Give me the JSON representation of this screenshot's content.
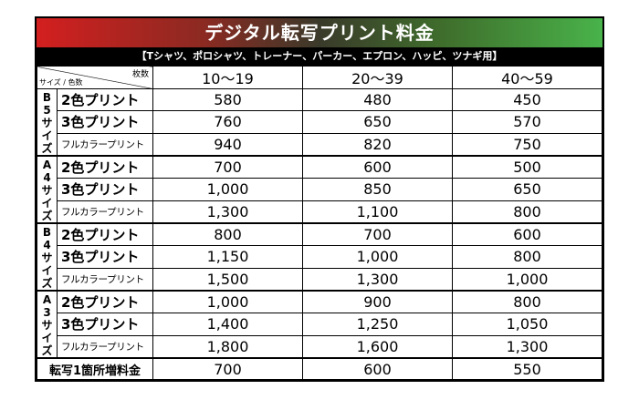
{
  "title": "デジタル転写プリント料金",
  "subtitle": "【Tシャツ、ポロシャツ、トレーナー、パーカー、エプロン、ハッピ、ツナギ用】",
  "header": {
    "corner_top": "枚数",
    "corner_bottom": "サイズ / 色数",
    "columns": [
      "10〜19",
      "20〜39",
      "40〜59"
    ]
  },
  "sizes": [
    {
      "label": [
        "B",
        "5",
        "サ",
        "イ",
        "ズ"
      ],
      "rows": [
        {
          "color": "2色プリント",
          "prices": [
            "580",
            "480",
            "450"
          ]
        },
        {
          "color": "3色プリント",
          "prices": [
            "760",
            "650",
            "570"
          ]
        },
        {
          "color": "フルカラープリント",
          "prices": [
            "940",
            "820",
            "750"
          ]
        }
      ]
    },
    {
      "label": [
        "A",
        "4",
        "サ",
        "イ",
        "ズ"
      ],
      "rows": [
        {
          "color": "2色プリント",
          "prices": [
            "700",
            "600",
            "500"
          ]
        },
        {
          "color": "3色プリント",
          "prices": [
            "1,000",
            "850",
            "650"
          ]
        },
        {
          "color": "フルカラープリント",
          "prices": [
            "1,300",
            "1,100",
            "800"
          ]
        }
      ]
    },
    {
      "label": [
        "B",
        "4",
        "サ",
        "イ",
        "ズ"
      ],
      "rows": [
        {
          "color": "2色プリント",
          "prices": [
            "800",
            "700",
            "600"
          ]
        },
        {
          "color": "3色プリント",
          "prices": [
            "1,150",
            "1,000",
            "800"
          ]
        },
        {
          "color": "フルカラープリント",
          "prices": [
            "1,500",
            "1,300",
            "1,000"
          ]
        }
      ]
    },
    {
      "label": [
        "A",
        "3",
        "サ",
        "イ",
        "ズ"
      ],
      "rows": [
        {
          "color": "2色プリント",
          "prices": [
            "1,000",
            "900",
            "800"
          ]
        },
        {
          "color": "3色プリント",
          "prices": [
            "1,400",
            "1,250",
            "1,050"
          ]
        },
        {
          "color": "フルカラープリント",
          "prices": [
            "1,800",
            "1,600",
            "1,300"
          ]
        }
      ]
    }
  ],
  "footer": {
    "label": "転写1箇所増料金",
    "prices": [
      "700",
      "600",
      "550"
    ]
  },
  "colors": {
    "banner_start": "#d31f1f",
    "banner_end": "#49b34a",
    "subtitle_bg": "#000000"
  }
}
